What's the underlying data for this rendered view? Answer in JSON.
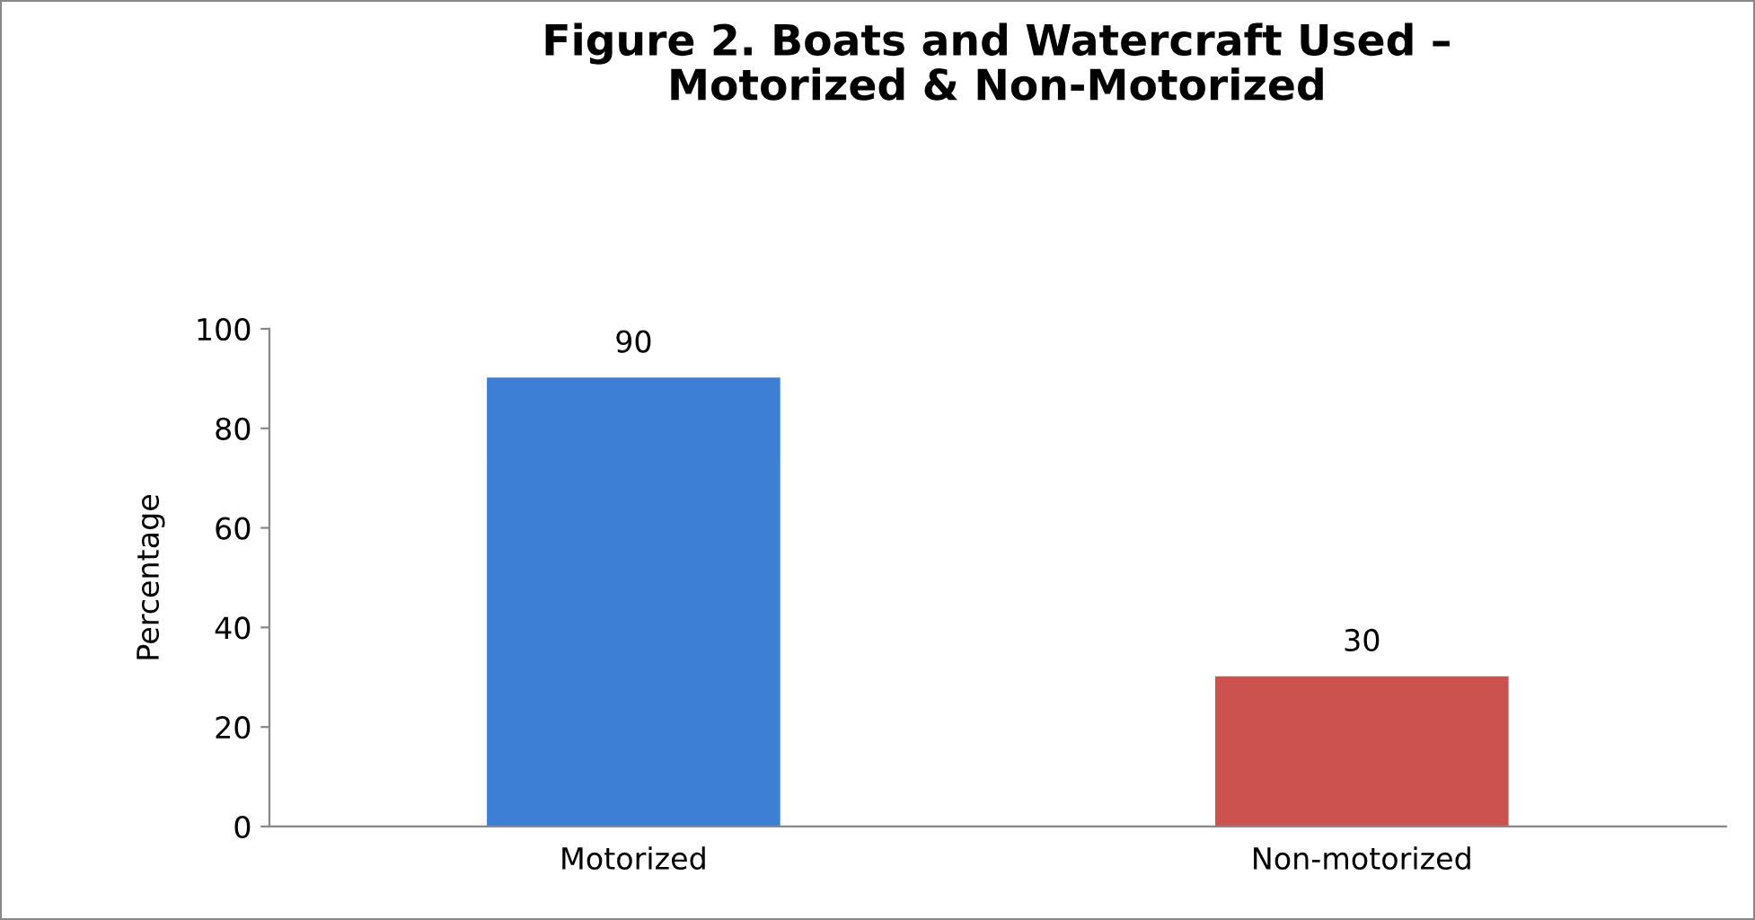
{
  "chart_data": {
    "type": "bar",
    "title": "Figure 2. Boats and Watercraft Used –\nMotorized & Non-Motorized",
    "ylabel": "Percentage",
    "categories": [
      "Motorized",
      "Non-motorized"
    ],
    "values": [
      90,
      30
    ],
    "colors": [
      "#3d7fd4",
      "#cc5250"
    ],
    "ylim": [
      0,
      100
    ],
    "yticks": [
      0,
      20,
      40,
      60,
      80,
      100
    ],
    "grid": false,
    "data_labels": true,
    "legend": false
  }
}
